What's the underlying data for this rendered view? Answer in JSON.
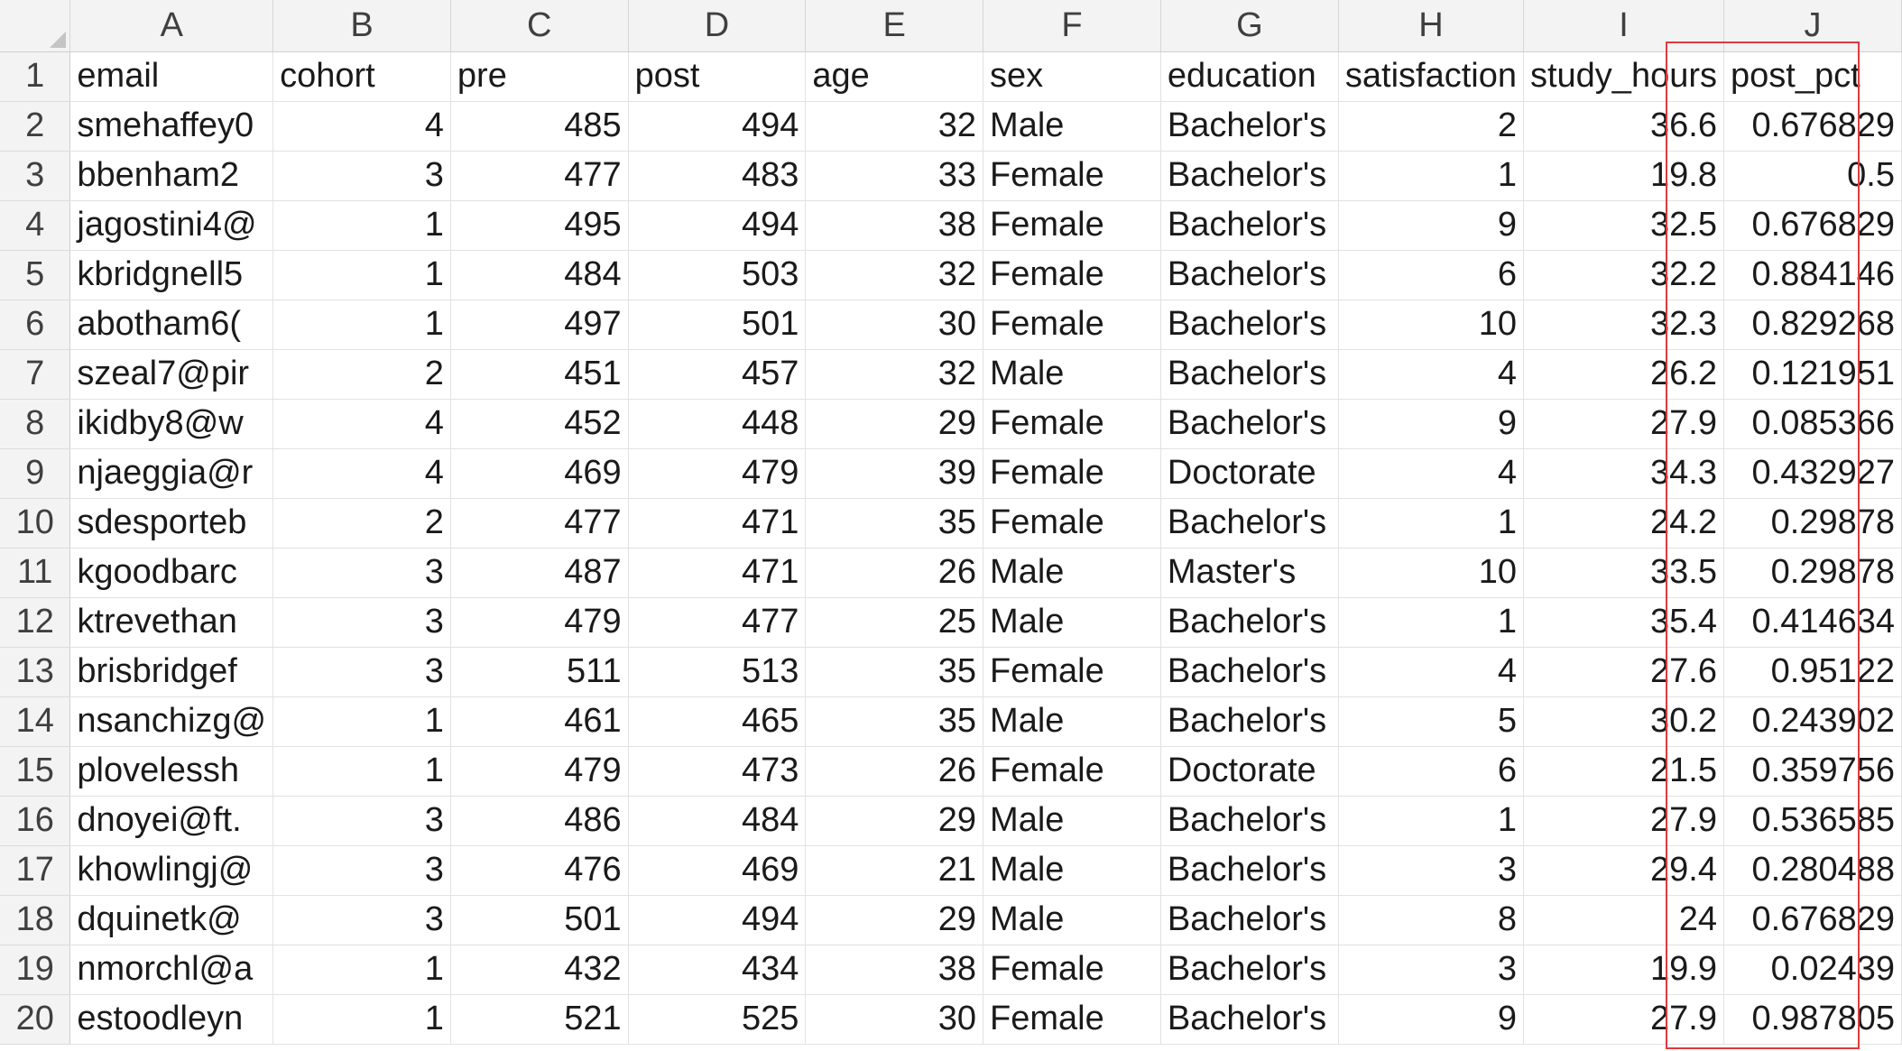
{
  "columns": [
    "A",
    "B",
    "C",
    "D",
    "E",
    "F",
    "G",
    "H",
    "I",
    "J"
  ],
  "header_row": {
    "row_number": "1",
    "cells": [
      "email",
      "cohort",
      "pre",
      "post",
      "age",
      "sex",
      "education",
      "satisfaction",
      "study_hours",
      "post_pct"
    ]
  },
  "rows": [
    {
      "row_number": "2",
      "cells": [
        "smehaffey0",
        "4",
        "485",
        "494",
        "32",
        "Male",
        "Bachelor's",
        "2",
        "36.6",
        "0.676829"
      ]
    },
    {
      "row_number": "3",
      "cells": [
        "bbenham2",
        "3",
        "477",
        "483",
        "33",
        "Female",
        "Bachelor's",
        "1",
        "19.8",
        "0.5"
      ]
    },
    {
      "row_number": "4",
      "cells": [
        "jagostini4@",
        "1",
        "495",
        "494",
        "38",
        "Female",
        "Bachelor's",
        "9",
        "32.5",
        "0.676829"
      ]
    },
    {
      "row_number": "5",
      "cells": [
        "kbridgnell5",
        "1",
        "484",
        "503",
        "32",
        "Female",
        "Bachelor's",
        "6",
        "32.2",
        "0.884146"
      ]
    },
    {
      "row_number": "6",
      "cells": [
        "abotham6(",
        "1",
        "497",
        "501",
        "30",
        "Female",
        "Bachelor's",
        "10",
        "32.3",
        "0.829268"
      ]
    },
    {
      "row_number": "7",
      "cells": [
        "szeal7@pir",
        "2",
        "451",
        "457",
        "32",
        "Male",
        "Bachelor's",
        "4",
        "26.2",
        "0.121951"
      ]
    },
    {
      "row_number": "8",
      "cells": [
        "ikidby8@w",
        "4",
        "452",
        "448",
        "29",
        "Female",
        "Bachelor's",
        "9",
        "27.9",
        "0.085366"
      ]
    },
    {
      "row_number": "9",
      "cells": [
        "njaeggia@r",
        "4",
        "469",
        "479",
        "39",
        "Female",
        "Doctorate",
        "4",
        "34.3",
        "0.432927"
      ]
    },
    {
      "row_number": "10",
      "cells": [
        "sdesporteb",
        "2",
        "477",
        "471",
        "35",
        "Female",
        "Bachelor's",
        "1",
        "24.2",
        "0.29878"
      ]
    },
    {
      "row_number": "11",
      "cells": [
        "kgoodbarc",
        "3",
        "487",
        "471",
        "26",
        "Male",
        "Master's",
        "10",
        "33.5",
        "0.29878"
      ]
    },
    {
      "row_number": "12",
      "cells": [
        "ktrevethan",
        "3",
        "479",
        "477",
        "25",
        "Male",
        "Bachelor's",
        "1",
        "35.4",
        "0.414634"
      ]
    },
    {
      "row_number": "13",
      "cells": [
        "brisbridgef",
        "3",
        "511",
        "513",
        "35",
        "Female",
        "Bachelor's",
        "4",
        "27.6",
        "0.95122"
      ]
    },
    {
      "row_number": "14",
      "cells": [
        "nsanchizg@",
        "1",
        "461",
        "465",
        "35",
        "Male",
        "Bachelor's",
        "5",
        "30.2",
        "0.243902"
      ]
    },
    {
      "row_number": "15",
      "cells": [
        "plovelessh",
        "1",
        "479",
        "473",
        "26",
        "Female",
        "Doctorate",
        "6",
        "21.5",
        "0.359756"
      ]
    },
    {
      "row_number": "16",
      "cells": [
        "dnoyei@ft.",
        "3",
        "486",
        "484",
        "29",
        "Male",
        "Bachelor's",
        "1",
        "27.9",
        "0.536585"
      ]
    },
    {
      "row_number": "17",
      "cells": [
        "khowlingj@",
        "3",
        "476",
        "469",
        "21",
        "Male",
        "Bachelor's",
        "3",
        "29.4",
        "0.280488"
      ]
    },
    {
      "row_number": "18",
      "cells": [
        "dquinetk@",
        "3",
        "501",
        "494",
        "29",
        "Male",
        "Bachelor's",
        "8",
        "24",
        "0.676829"
      ]
    },
    {
      "row_number": "19",
      "cells": [
        "nmorchl@a",
        "1",
        "432",
        "434",
        "38",
        "Female",
        "Bachelor's",
        "3",
        "19.9",
        "0.02439"
      ]
    },
    {
      "row_number": "20",
      "cells": [
        "estoodleyn",
        "1",
        "521",
        "525",
        "30",
        "Female",
        "Bachelor's",
        "9",
        "27.9",
        "0.987805"
      ]
    }
  ],
  "highlight_color": "#e0393e"
}
